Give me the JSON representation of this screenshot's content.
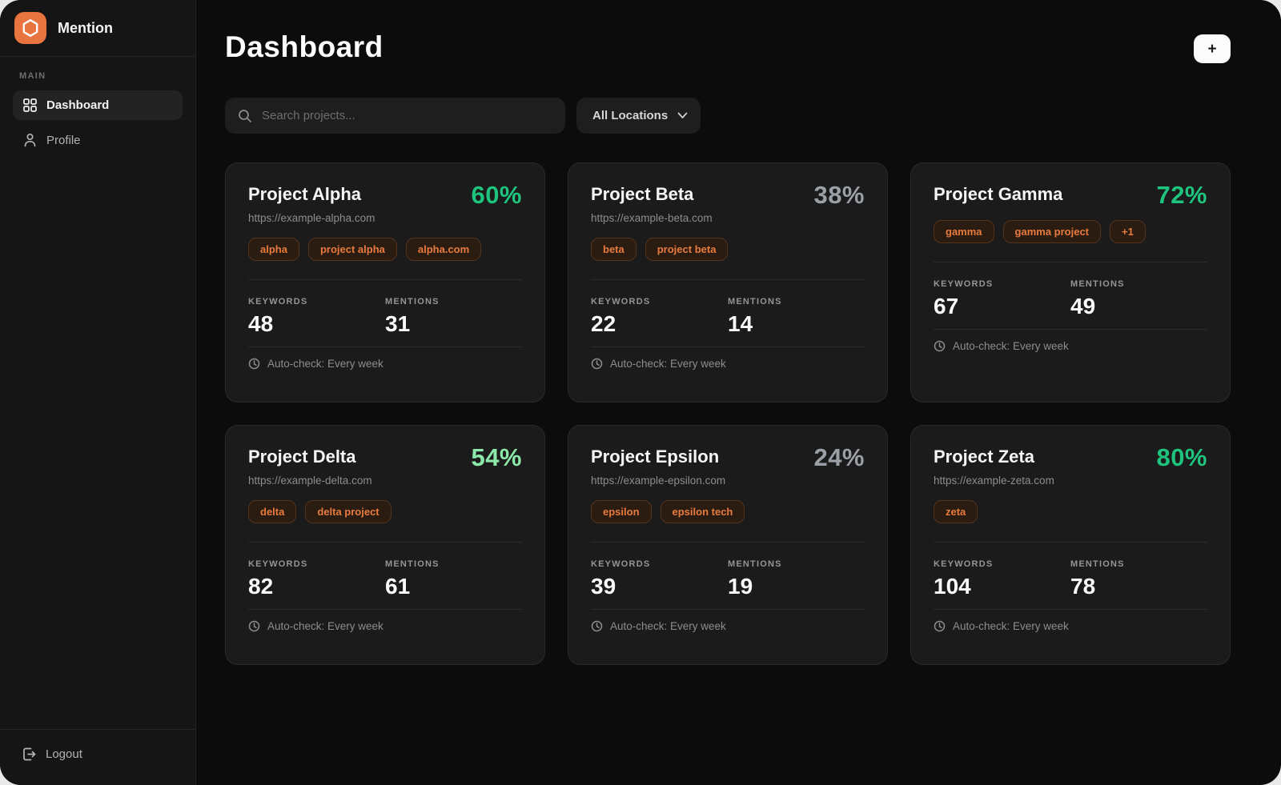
{
  "brand": {
    "name": "Mention"
  },
  "sidebar": {
    "section_label": "MAIN",
    "items": [
      {
        "label": "Dashboard",
        "active": true
      },
      {
        "label": "Profile",
        "active": false
      }
    ],
    "logout_label": "Logout"
  },
  "header": {
    "title": "Dashboard",
    "add_button_label": "+"
  },
  "filters": {
    "search_placeholder": "Search projects...",
    "location_selected": "All Locations"
  },
  "cards_meta": {
    "keywords_label": "KEYWORDS",
    "mentions_label": "MENTIONS",
    "autocheck_label": "Auto-check: Every week"
  },
  "colors": {
    "brand_orange": "#e8743f",
    "tag_orange": "#e87b3d",
    "green": "#1ec37e",
    "light_green": "#8ce8a8",
    "gray": "#9aa0a6"
  },
  "projects": [
    {
      "name": "Project Alpha",
      "percent": "60%",
      "percent_color": "green",
      "url": "https://example-alpha.com",
      "tags": [
        "alpha",
        "project alpha",
        "alpha.com"
      ],
      "keywords": "48",
      "mentions": "31"
    },
    {
      "name": "Project Beta",
      "percent": "38%",
      "percent_color": "gray",
      "url": "https://example-beta.com",
      "tags": [
        "beta",
        "project beta"
      ],
      "keywords": "22",
      "mentions": "14"
    },
    {
      "name": "Project Gamma",
      "percent": "72%",
      "percent_color": "green",
      "url": "",
      "tags": [
        "gamma",
        "gamma project",
        "+1"
      ],
      "keywords": "67",
      "mentions": "49"
    },
    {
      "name": "Project Delta",
      "percent": "54%",
      "percent_color": "light_green",
      "url": "https://example-delta.com",
      "tags": [
        "delta",
        "delta project"
      ],
      "keywords": "82",
      "mentions": "61"
    },
    {
      "name": "Project Epsilon",
      "percent": "24%",
      "percent_color": "gray",
      "url": "https://example-epsilon.com",
      "tags": [
        "epsilon",
        "epsilon tech"
      ],
      "keywords": "39",
      "mentions": "19"
    },
    {
      "name": "Project Zeta",
      "percent": "80%",
      "percent_color": "green",
      "url": "https://example-zeta.com",
      "tags": [
        "zeta"
      ],
      "keywords": "104",
      "mentions": "78"
    }
  ]
}
